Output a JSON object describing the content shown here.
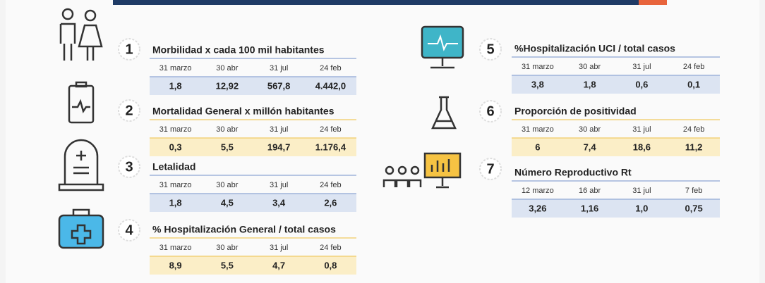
{
  "panels": [
    {
      "number": 1,
      "title": "Morbilidad x cada 100 mil habitantes",
      "dates": [
        "31 marzo",
        "30 abr",
        "31 jul",
        "24 feb"
      ],
      "values": [
        "1,8",
        "12,92",
        "567,8",
        "4.442,0"
      ]
    },
    {
      "number": 2,
      "title": "Mortalidad General x millón habitantes",
      "dates": [
        "31 marzo",
        "30 abr",
        "31 jul",
        "24 feb"
      ],
      "values": [
        "0,3",
        "5,5",
        "194,7",
        "1.176,4"
      ]
    },
    {
      "number": 3,
      "title": "Letalidad",
      "dates": [
        "31 marzo",
        "30 abr",
        "31 jul",
        "24 feb"
      ],
      "values": [
        "1,8",
        "4,5",
        "3,4",
        "2,6"
      ]
    },
    {
      "number": 4,
      "title": "% Hospitalización General / total casos",
      "dates": [
        "31 marzo",
        "30 abr",
        "31 jul",
        "24 feb"
      ],
      "values": [
        "8,9",
        "5,5",
        "4,7",
        "0,8"
      ]
    },
    {
      "number": 5,
      "title": "%Hospitalización UCI / total casos",
      "dates": [
        "31 marzo",
        "30 abr",
        "31 jul",
        "24 feb"
      ],
      "values": [
        "3,8",
        "1,8",
        "0,6",
        "0,1"
      ]
    },
    {
      "number": 6,
      "title": "Proporción de positividad",
      "dates": [
        "31 marzo",
        "30 abr",
        "31 jul",
        "24 feb"
      ],
      "values": [
        "6",
        "7,4",
        "18,6",
        "11,2"
      ]
    },
    {
      "number": 7,
      "title": "Número Reproductivo Rt",
      "dates": [
        "12 marzo",
        "16 abr",
        "31 jul",
        "7 feb"
      ],
      "values": [
        "3,26",
        "1,16",
        "1,0",
        "0,75"
      ]
    }
  ]
}
